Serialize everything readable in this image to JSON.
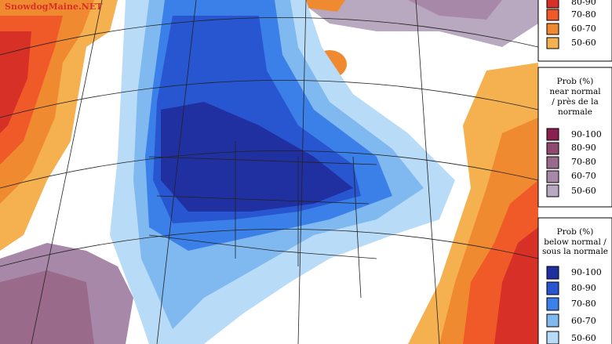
{
  "watermark": "SnowdogMaine.NET",
  "legend": {
    "above": {
      "items": [
        "80-90",
        "70-80",
        "60-70",
        "50-60"
      ]
    },
    "near": {
      "title": [
        "Prob (%)",
        "near normal",
        "/ près de la",
        "normale"
      ],
      "items": [
        "90-100",
        "80-90",
        "70-80",
        "60-70",
        "50-60"
      ]
    },
    "below": {
      "title": [
        "Prob (%)",
        "below normal /",
        "sous la normale"
      ],
      "items": [
        "90-100",
        "80-90",
        "70-80",
        "60-70",
        "50-60"
      ]
    }
  }
}
